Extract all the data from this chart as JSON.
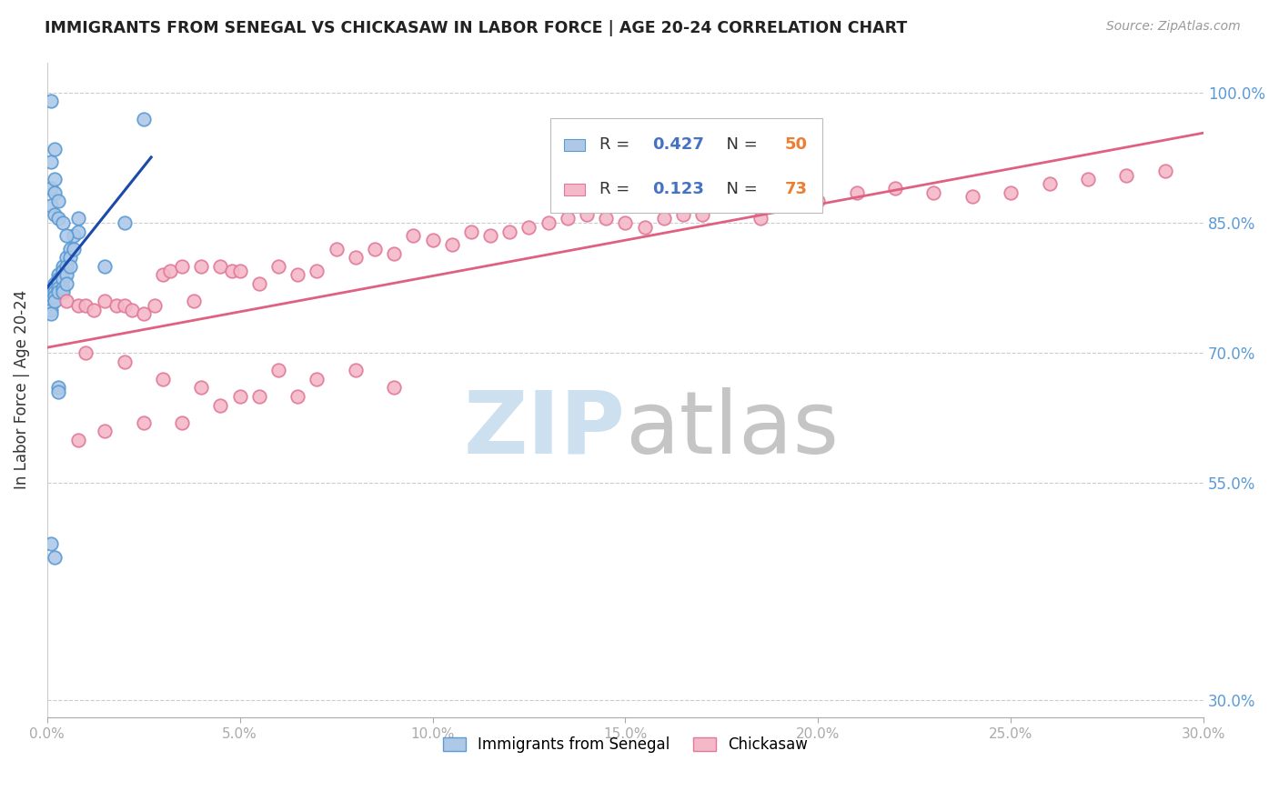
{
  "title": "IMMIGRANTS FROM SENEGAL VS CHICKASAW IN LABOR FORCE | AGE 20-24 CORRELATION CHART",
  "source": "Source: ZipAtlas.com",
  "ylabel": "In Labor Force | Age 20-24",
  "xmin": 0.0,
  "xmax": 0.3,
  "ymin": 0.28,
  "ymax": 1.035,
  "yticks": [
    0.3,
    0.55,
    0.7,
    0.85,
    1.0
  ],
  "ytick_labels": [
    "30.0%",
    "55.0%",
    "70.0%",
    "85.0%",
    "100.0%"
  ],
  "xticks": [
    0.0,
    0.05,
    0.1,
    0.15,
    0.2,
    0.25,
    0.3
  ],
  "xtick_labels": [
    "0.0%",
    "5.0%",
    "10.0%",
    "15.0%",
    "20.0%",
    "25.0%",
    "30.0%"
  ],
  "blue_R": 0.427,
  "blue_N": 50,
  "pink_R": 0.123,
  "pink_N": 73,
  "blue_fill": "#aec9e8",
  "blue_edge": "#5b9bd5",
  "pink_fill": "#f4b8c8",
  "pink_edge": "#e07a9a",
  "blue_line_color": "#1a4aaa",
  "pink_line_color": "#e06080",
  "legend_R_color": "#4472c4",
  "legend_N_color": "#ed7d31",
  "tick_color": "#5b9bd5",
  "watermark_zip": "#cde0f0",
  "watermark_atlas": "#c5c5c5",
  "blue_x": [
    0.001,
    0.001,
    0.001,
    0.001,
    0.001,
    0.002,
    0.002,
    0.002,
    0.002,
    0.002,
    0.003,
    0.003,
    0.003,
    0.003,
    0.003,
    0.004,
    0.004,
    0.004,
    0.004,
    0.004,
    0.005,
    0.005,
    0.005,
    0.005,
    0.006,
    0.006,
    0.006,
    0.007,
    0.007,
    0.008,
    0.008,
    0.001,
    0.002,
    0.003,
    0.004,
    0.005,
    0.001,
    0.002,
    0.003,
    0.001,
    0.002,
    0.015,
    0.02,
    0.025,
    0.001,
    0.002,
    0.003,
    0.001,
    0.002,
    0.003
  ],
  "blue_y": [
    0.77,
    0.76,
    0.755,
    0.75,
    0.745,
    0.78,
    0.775,
    0.77,
    0.765,
    0.76,
    0.79,
    0.785,
    0.78,
    0.775,
    0.77,
    0.8,
    0.795,
    0.785,
    0.775,
    0.77,
    0.81,
    0.8,
    0.79,
    0.78,
    0.82,
    0.81,
    0.8,
    0.835,
    0.82,
    0.855,
    0.84,
    0.87,
    0.86,
    0.855,
    0.85,
    0.835,
    0.89,
    0.885,
    0.875,
    0.92,
    0.9,
    0.8,
    0.85,
    0.97,
    0.99,
    0.935,
    0.66,
    0.48,
    0.465,
    0.655
  ],
  "pink_x": [
    0.005,
    0.008,
    0.01,
    0.012,
    0.015,
    0.018,
    0.02,
    0.022,
    0.025,
    0.028,
    0.03,
    0.032,
    0.035,
    0.038,
    0.04,
    0.045,
    0.048,
    0.05,
    0.055,
    0.06,
    0.065,
    0.07,
    0.075,
    0.08,
    0.085,
    0.09,
    0.095,
    0.1,
    0.105,
    0.11,
    0.115,
    0.12,
    0.125,
    0.13,
    0.135,
    0.14,
    0.145,
    0.15,
    0.155,
    0.16,
    0.165,
    0.17,
    0.175,
    0.18,
    0.185,
    0.19,
    0.195,
    0.2,
    0.21,
    0.22,
    0.23,
    0.24,
    0.25,
    0.26,
    0.27,
    0.28,
    0.29,
    0.01,
    0.02,
    0.03,
    0.04,
    0.05,
    0.06,
    0.07,
    0.08,
    0.09,
    0.008,
    0.015,
    0.025,
    0.035,
    0.045,
    0.055,
    0.065
  ],
  "pink_y": [
    0.76,
    0.755,
    0.755,
    0.75,
    0.76,
    0.755,
    0.755,
    0.75,
    0.745,
    0.755,
    0.79,
    0.795,
    0.8,
    0.76,
    0.8,
    0.8,
    0.795,
    0.795,
    0.78,
    0.8,
    0.79,
    0.795,
    0.82,
    0.81,
    0.82,
    0.815,
    0.835,
    0.83,
    0.825,
    0.84,
    0.835,
    0.84,
    0.845,
    0.85,
    0.855,
    0.86,
    0.855,
    0.85,
    0.845,
    0.855,
    0.86,
    0.86,
    0.87,
    0.87,
    0.855,
    0.87,
    0.875,
    0.875,
    0.885,
    0.89,
    0.885,
    0.88,
    0.885,
    0.895,
    0.9,
    0.905,
    0.91,
    0.7,
    0.69,
    0.67,
    0.66,
    0.65,
    0.68,
    0.67,
    0.68,
    0.66,
    0.6,
    0.61,
    0.62,
    0.62,
    0.64,
    0.65,
    0.65
  ],
  "blue_line_x": [
    0.0,
    0.03
  ],
  "blue_line_slope": 18.0,
  "blue_line_intercept": 0.735,
  "pink_line_slope": 0.45,
  "pink_line_intercept": 0.73
}
